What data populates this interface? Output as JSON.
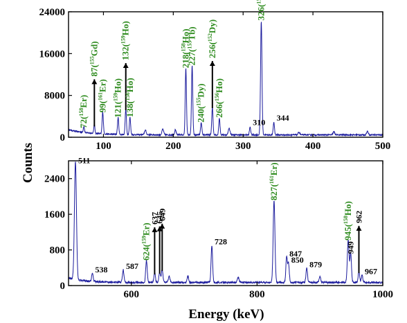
{
  "chart_data": [
    {
      "type": "line",
      "series_color": "#1a1a9c",
      "xlim": [
        50,
        500
      ],
      "ylim": [
        0,
        24000
      ],
      "xticks": [
        100,
        200,
        300,
        400,
        500
      ],
      "yticks": [
        0,
        8000,
        16000,
        24000
      ],
      "xtick_labels": [
        "100",
        "200",
        "300",
        "400",
        "500"
      ],
      "ytick_labels": [
        "0",
        "8000",
        "16000",
        "24000"
      ],
      "baseline": 450,
      "peaks": [
        {
          "x": 72,
          "y": 1200,
          "w": 0.8
        },
        {
          "x": 87,
          "y": 1800,
          "w": 0.8
        },
        {
          "x": 99,
          "y": 4200,
          "w": 0.9
        },
        {
          "x": 121,
          "y": 3200,
          "w": 0.9
        },
        {
          "x": 132,
          "y": 4900,
          "w": 0.9
        },
        {
          "x": 138,
          "y": 3300,
          "w": 0.9
        },
        {
          "x": 160,
          "y": 900,
          "w": 1.2
        },
        {
          "x": 185,
          "y": 1100,
          "w": 1.2
        },
        {
          "x": 203,
          "y": 1000,
          "w": 1.0
        },
        {
          "x": 218,
          "y": 12700,
          "w": 0.9
        },
        {
          "x": 227,
          "y": 13200,
          "w": 0.9
        },
        {
          "x": 240,
          "y": 2300,
          "w": 0.9
        },
        {
          "x": 256,
          "y": 5300,
          "w": 0.9
        },
        {
          "x": 266,
          "y": 3200,
          "w": 0.9
        },
        {
          "x": 280,
          "y": 1300,
          "w": 1.2
        },
        {
          "x": 310,
          "y": 1500,
          "w": 0.9
        },
        {
          "x": 326,
          "y": 21800,
          "w": 1.0
        },
        {
          "x": 344,
          "y": 2400,
          "w": 0.9
        },
        {
          "x": 380,
          "y": 500,
          "w": 1.2
        },
        {
          "x": 430,
          "y": 600,
          "w": 1.2
        },
        {
          "x": 478,
          "y": 700,
          "w": 1.2
        }
      ],
      "annotations": [
        {
          "text": "72(",
          "sup": "158",
          "tail": "Er)",
          "color": "green",
          "x": 72,
          "y": 1200,
          "arrow": false
        },
        {
          "text": "87(",
          "sup": "155",
          "tail": "Gd)",
          "color": "green",
          "x": 87,
          "y": 1800,
          "arrow": true
        },
        {
          "text": "99(",
          "sup": "161",
          "tail": "Er)",
          "color": "green",
          "x": 99,
          "y": 4200,
          "arrow": false
        },
        {
          "text": "121(",
          "sup": "159",
          "tail": "Ho)",
          "color": "green",
          "x": 121,
          "y": 3200,
          "arrow": false
        },
        {
          "text": "132(",
          "sup": "159",
          "tail": "Ho)",
          "color": "green",
          "x": 132,
          "y": 4900,
          "arrow": true
        },
        {
          "text": "138(",
          "sup": "156",
          "tail": "Ho)",
          "color": "green",
          "x": 138,
          "y": 3300,
          "arrow": false
        },
        {
          "text": "218(",
          "sup": "158",
          "tail": "Ho)",
          "color": "green",
          "x": 218,
          "y": 12700,
          "arrow": false
        },
        {
          "text": "227(",
          "sup": "155",
          "tail": "Tb)",
          "color": "green",
          "x": 227,
          "y": 13200,
          "arrow": false
        },
        {
          "text": "240(",
          "sup": "155",
          "tail": "Dy)",
          "color": "green",
          "x": 240,
          "y": 2300,
          "arrow": false
        },
        {
          "text": "256(",
          "sup": "152",
          "tail": "Dy)",
          "color": "green",
          "x": 256,
          "y": 5300,
          "arrow": true
        },
        {
          "text": "266(",
          "sup": "156",
          "tail": "Ho)",
          "color": "green",
          "x": 266,
          "y": 3200,
          "arrow": false
        },
        {
          "text": "310",
          "sup": "",
          "tail": "",
          "color": "black",
          "x": 310,
          "y": 1500,
          "arrow": false
        },
        {
          "text": "326(",
          "sup": "157",
          "tail": "Er)",
          "color": "green",
          "x": 326,
          "y": 21800,
          "arrow": false
        },
        {
          "text": "344",
          "sup": "",
          "tail": "",
          "color": "black",
          "x": 344,
          "y": 2400,
          "arrow": false
        }
      ]
    },
    {
      "type": "line",
      "series_color": "#1a1a9c",
      "xlim": [
        500,
        1000
      ],
      "ylim": [
        0,
        2800
      ],
      "xticks": [
        600,
        800,
        1000
      ],
      "yticks": [
        0,
        800,
        1600,
        2400
      ],
      "xtick_labels": [
        "600",
        "800",
        "1000"
      ],
      "ytick_labels": [
        "0",
        "800",
        "1600",
        "2400"
      ],
      "baseline": 70,
      "peaks": [
        {
          "x": 511,
          "y": 2650,
          "w": 1.6
        },
        {
          "x": 538,
          "y": 200,
          "w": 1.2
        },
        {
          "x": 587,
          "y": 280,
          "w": 1.2
        },
        {
          "x": 624,
          "y": 500,
          "w": 1.2
        },
        {
          "x": 637,
          "y": 220,
          "w": 1.2
        },
        {
          "x": 645,
          "y": 240,
          "w": 1.2
        },
        {
          "x": 649,
          "y": 300,
          "w": 1.2
        },
        {
          "x": 660,
          "y": 150,
          "w": 1.2
        },
        {
          "x": 690,
          "y": 140,
          "w": 1.2
        },
        {
          "x": 728,
          "y": 830,
          "w": 1.2
        },
        {
          "x": 770,
          "y": 120,
          "w": 1.2
        },
        {
          "x": 827,
          "y": 1850,
          "w": 1.4
        },
        {
          "x": 847,
          "y": 560,
          "w": 1.2
        },
        {
          "x": 850,
          "y": 420,
          "w": 1.2
        },
        {
          "x": 879,
          "y": 320,
          "w": 1.2
        },
        {
          "x": 900,
          "y": 130,
          "w": 1.2
        },
        {
          "x": 945,
          "y": 950,
          "w": 1.4
        },
        {
          "x": 949,
          "y": 650,
          "w": 1.2
        },
        {
          "x": 962,
          "y": 250,
          "w": 1.2
        },
        {
          "x": 967,
          "y": 160,
          "w": 1.2
        }
      ],
      "annotations": [
        {
          "text": "511",
          "sup": "",
          "tail": "",
          "color": "black",
          "x": 511,
          "y": 2650,
          "arrow": false
        },
        {
          "text": "538",
          "sup": "",
          "tail": "",
          "color": "black",
          "x": 538,
          "y": 200,
          "arrow": false
        },
        {
          "text": "587",
          "sup": "",
          "tail": "",
          "color": "black",
          "x": 587,
          "y": 280,
          "arrow": false
        },
        {
          "text": "624(",
          "sup": "159",
          "tail": "Er)",
          "color": "green",
          "x": 624,
          "y": 500,
          "arrow": false
        },
        {
          "text": "637",
          "sup": "",
          "tail": "",
          "color": "black",
          "x": 637,
          "y": 220,
          "arrow": true
        },
        {
          "text": "645",
          "sup": "",
          "tail": "",
          "color": "black",
          "x": 645,
          "y": 240,
          "arrow": true
        },
        {
          "text": "649",
          "sup": "",
          "tail": "",
          "color": "black",
          "x": 649,
          "y": 300,
          "arrow": true
        },
        {
          "text": "728",
          "sup": "",
          "tail": "",
          "color": "black",
          "x": 728,
          "y": 830,
          "arrow": false
        },
        {
          "text": "827(",
          "sup": "161",
          "tail": "Er)",
          "color": "green",
          "x": 827,
          "y": 1850,
          "arrow": false
        },
        {
          "text": "847",
          "sup": "",
          "tail": "",
          "color": "black",
          "x": 847,
          "y": 560,
          "arrow": false
        },
        {
          "text": "850",
          "sup": "",
          "tail": "",
          "color": "black",
          "x": 850,
          "y": 420,
          "arrow": false
        },
        {
          "text": "879",
          "sup": "",
          "tail": "",
          "color": "black",
          "x": 879,
          "y": 320,
          "arrow": false
        },
        {
          "text": "945(",
          "sup": "158",
          "tail": "Ho)",
          "color": "green",
          "x": 945,
          "y": 950,
          "arrow": false
        },
        {
          "text": "949",
          "sup": "",
          "tail": "",
          "color": "black",
          "x": 949,
          "y": 650,
          "arrow": false
        },
        {
          "text": "962",
          "sup": "",
          "tail": "",
          "color": "black",
          "x": 962,
          "y": 250,
          "arrow": true
        },
        {
          "text": "967",
          "sup": "",
          "tail": "",
          "color": "black",
          "x": 967,
          "y": 160,
          "arrow": false
        }
      ]
    }
  ],
  "labels": {
    "y_axis": "Counts",
    "x_axis": "Energy (keV)"
  }
}
